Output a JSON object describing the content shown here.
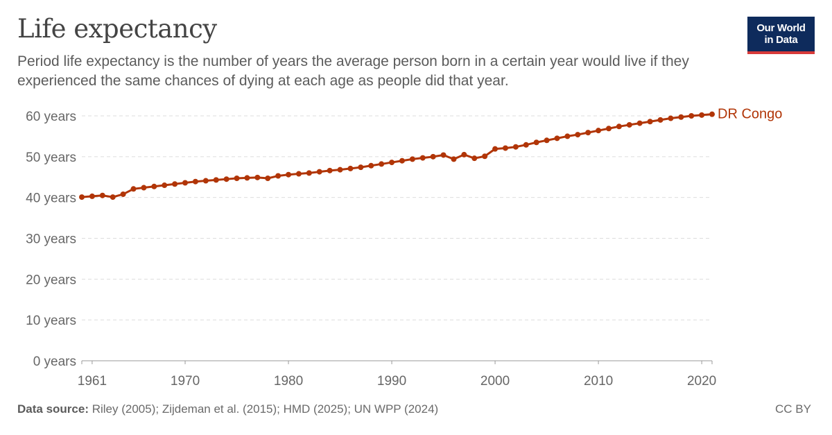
{
  "title": "Life expectancy",
  "subtitle": "Period life expectancy is the number of years the average person born in a certain year would live if they experienced the same chances of dying at each age as people did that year.",
  "logo": {
    "line1": "Our World",
    "line2": "in Data"
  },
  "footer": {
    "source_label": "Data source:",
    "source_text": "Riley (2005); Zijdeman et al. (2015); HMD (2025); UN WPP (2024)",
    "license": "CC BY"
  },
  "chart_data": {
    "type": "line",
    "title": "Life expectancy",
    "xlabel": "",
    "ylabel": "",
    "xlim": [
      1960,
      2021
    ],
    "ylim": [
      0,
      60
    ],
    "y_ticks": [
      {
        "value": 0,
        "label": "0 years"
      },
      {
        "value": 10,
        "label": "10 years"
      },
      {
        "value": 20,
        "label": "20 years"
      },
      {
        "value": 30,
        "label": "30 years"
      },
      {
        "value": 40,
        "label": "40 years"
      },
      {
        "value": 50,
        "label": "50 years"
      },
      {
        "value": 60,
        "label": "60 years"
      }
    ],
    "x_ticks": [
      {
        "value": 1961,
        "label": "1961"
      },
      {
        "value": 1970,
        "label": "1970"
      },
      {
        "value": 1980,
        "label": "1980"
      },
      {
        "value": 1990,
        "label": "1990"
      },
      {
        "value": 2000,
        "label": "2000"
      },
      {
        "value": 2010,
        "label": "2010"
      },
      {
        "value": 2020,
        "label": "2020"
      }
    ],
    "grid": "horizontal dashed",
    "series": [
      {
        "name": "DR Congo",
        "color": "#b13507",
        "x": [
          1960,
          1961,
          1962,
          1963,
          1964,
          1965,
          1966,
          1967,
          1968,
          1969,
          1970,
          1971,
          1972,
          1973,
          1974,
          1975,
          1976,
          1977,
          1978,
          1979,
          1980,
          1981,
          1982,
          1983,
          1984,
          1985,
          1986,
          1987,
          1988,
          1989,
          1990,
          1991,
          1992,
          1993,
          1994,
          1995,
          1996,
          1997,
          1998,
          1999,
          2000,
          2001,
          2002,
          2003,
          2004,
          2005,
          2006,
          2007,
          2008,
          2009,
          2010,
          2011,
          2012,
          2013,
          2014,
          2015,
          2016,
          2017,
          2018,
          2019,
          2020,
          2021
        ],
        "values": [
          40.1,
          40.3,
          40.5,
          40.1,
          40.8,
          42.1,
          42.4,
          42.7,
          43.0,
          43.3,
          43.6,
          43.9,
          44.1,
          44.3,
          44.5,
          44.7,
          44.8,
          44.9,
          44.7,
          45.3,
          45.6,
          45.8,
          46.0,
          46.3,
          46.6,
          46.8,
          47.1,
          47.4,
          47.8,
          48.2,
          48.6,
          49.0,
          49.4,
          49.7,
          50.0,
          50.4,
          49.4,
          50.5,
          49.6,
          50.1,
          51.9,
          52.1,
          52.4,
          52.9,
          53.5,
          54.0,
          54.5,
          55.0,
          55.4,
          55.9,
          56.4,
          56.9,
          57.4,
          57.8,
          58.2,
          58.6,
          59.0,
          59.4,
          59.7,
          60.0,
          60.2,
          60.4
        ]
      }
    ]
  }
}
